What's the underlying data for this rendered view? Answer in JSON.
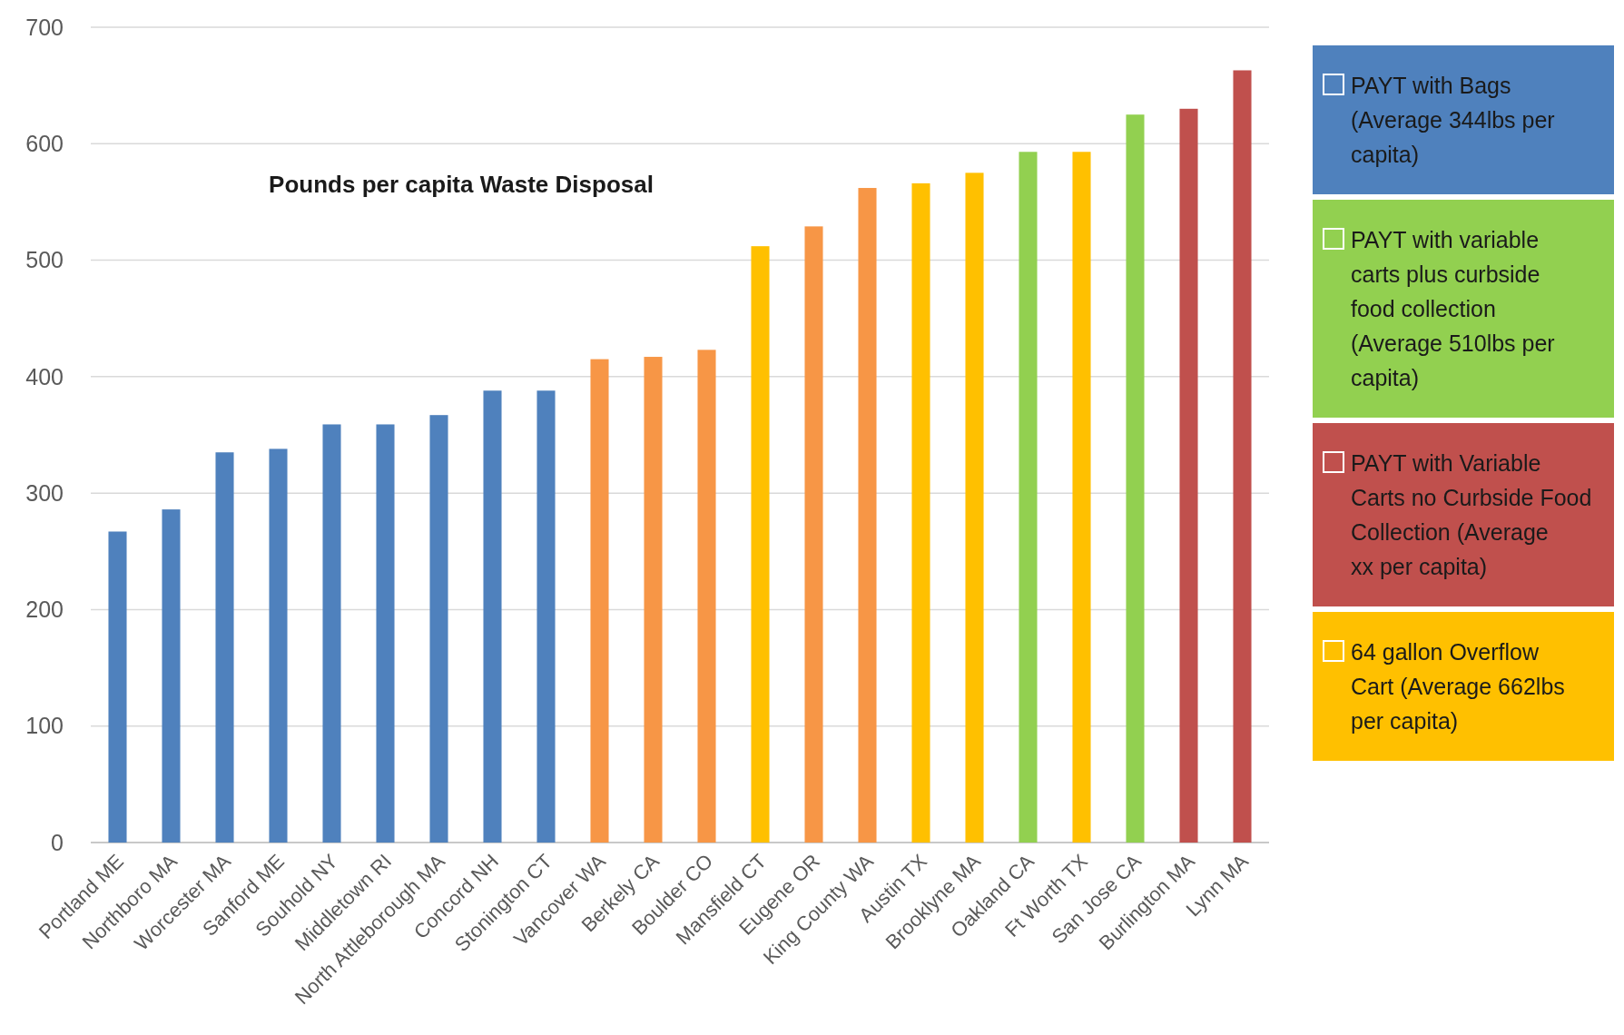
{
  "chart_data": {
    "type": "bar",
    "title": "Pounds per capita Waste Disposal",
    "categories": [
      "Portland ME",
      "Northboro MA",
      "Worcester MA",
      "Sanford ME",
      "Souhold NY",
      "Middletown RI",
      "North Attleborough MA",
      "Concord NH",
      "Stonington CT",
      "Vancover WA",
      "Berkely CA",
      "Boulder CO",
      "Mansfield CT",
      "Eugene OR",
      "King County WA",
      "Austin TX",
      "Brooklyne MA",
      "Oakland CA",
      "Ft Worth TX",
      "San Jose CA",
      "Burlington MA",
      "Lynn MA"
    ],
    "series": [
      {
        "name": "PAYT with Bags (Average 344lbs per capita)",
        "color": "#4f81bd",
        "values": [
          267,
          286,
          335,
          338,
          359,
          359,
          367,
          388,
          388,
          null,
          null,
          null,
          null,
          null,
          null,
          null,
          null,
          null,
          null,
          null,
          null,
          null
        ]
      },
      {
        "name": "PAYT with variable carts plus curbside food collection  (Average 510lbs per capita)",
        "color": "#92d050",
        "values": [
          null,
          null,
          null,
          null,
          null,
          null,
          null,
          null,
          null,
          null,
          null,
          null,
          null,
          null,
          null,
          null,
          null,
          593,
          null,
          625,
          null,
          null
        ]
      },
      {
        "name": "PAYT with Variable Carts no Curbside Food Collection (Average  xx per capita)",
        "color": "#c0504d",
        "values": [
          null,
          null,
          null,
          null,
          null,
          null,
          null,
          null,
          null,
          null,
          null,
          null,
          null,
          null,
          null,
          null,
          null,
          null,
          null,
          null,
          630,
          663
        ]
      },
      {
        "name": "64 gallon Overflow Cart (Average 662lbs per capita)",
        "color": "#ffc000",
        "values": [
          null,
          null,
          null,
          null,
          null,
          null,
          null,
          null,
          null,
          null,
          null,
          null,
          512,
          null,
          null,
          566,
          575,
          null,
          593,
          null,
          null,
          null
        ]
      },
      {
        "color": "#f79646",
        "values": [
          null,
          null,
          null,
          null,
          null,
          null,
          null,
          null,
          null,
          415,
          417,
          423,
          null,
          529,
          562,
          null,
          null,
          null,
          null,
          null,
          null,
          null
        ]
      }
    ],
    "ylim": [
      0,
      700
    ],
    "yticks": [
      0,
      100,
      200,
      300,
      400,
      500,
      600,
      700
    ],
    "grid": "y",
    "legend": "right"
  }
}
